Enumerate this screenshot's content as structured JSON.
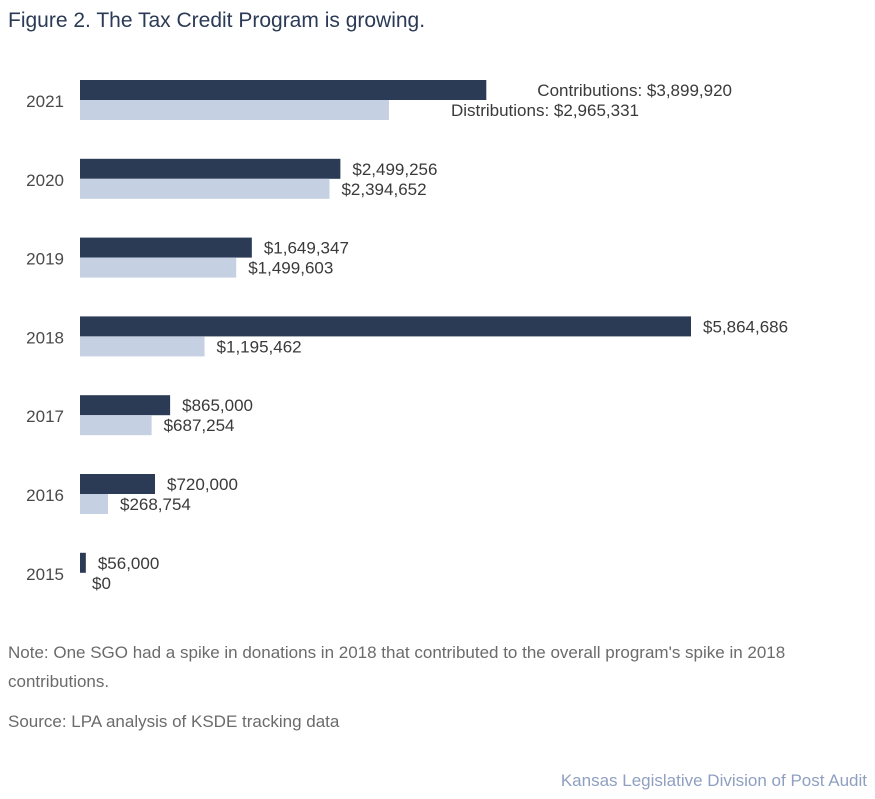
{
  "title": "Figure 2. The Tax Credit Program is growing.",
  "note": "Note: One SGO had a spike in donations in 2018 that contributed to the overall program's spike in 2018 contributions.",
  "source": "Source: LPA analysis of KSDE tracking data",
  "credit": "Kansas Legislative Division of Post Audit",
  "colors": {
    "contributions": "#2b3a55",
    "distributions": "#c5d0e2",
    "label": "#3a3a3a"
  },
  "chart_data": {
    "type": "bar",
    "orientation": "horizontal",
    "title": "Figure 2. The Tax Credit Program is growing.",
    "xlabel": "",
    "ylabel": "",
    "categories": [
      "2021",
      "2020",
      "2019",
      "2018",
      "2017",
      "2016",
      "2015"
    ],
    "series": [
      {
        "name": "Contributions",
        "values": [
          3899920,
          2499256,
          1649347,
          5864686,
          865000,
          720000,
          56000
        ],
        "labels": [
          "Contributions: $3,899,920",
          "$2,499,256",
          "$1,649,347",
          "$5,864,686",
          "$865,000",
          "$720,000",
          "$56,000"
        ]
      },
      {
        "name": "Distributions",
        "values": [
          2965331,
          2394652,
          1499603,
          1195462,
          687254,
          268754,
          0
        ],
        "labels": [
          "Distributions: $2,965,331",
          "$2,394,652",
          "$1,499,603",
          "$1,195,462",
          "$687,254",
          "$268,754",
          "$0"
        ]
      }
    ],
    "xlim": [
      0,
      5864686
    ],
    "grid": false,
    "legend": "none (series named in data labels)"
  }
}
